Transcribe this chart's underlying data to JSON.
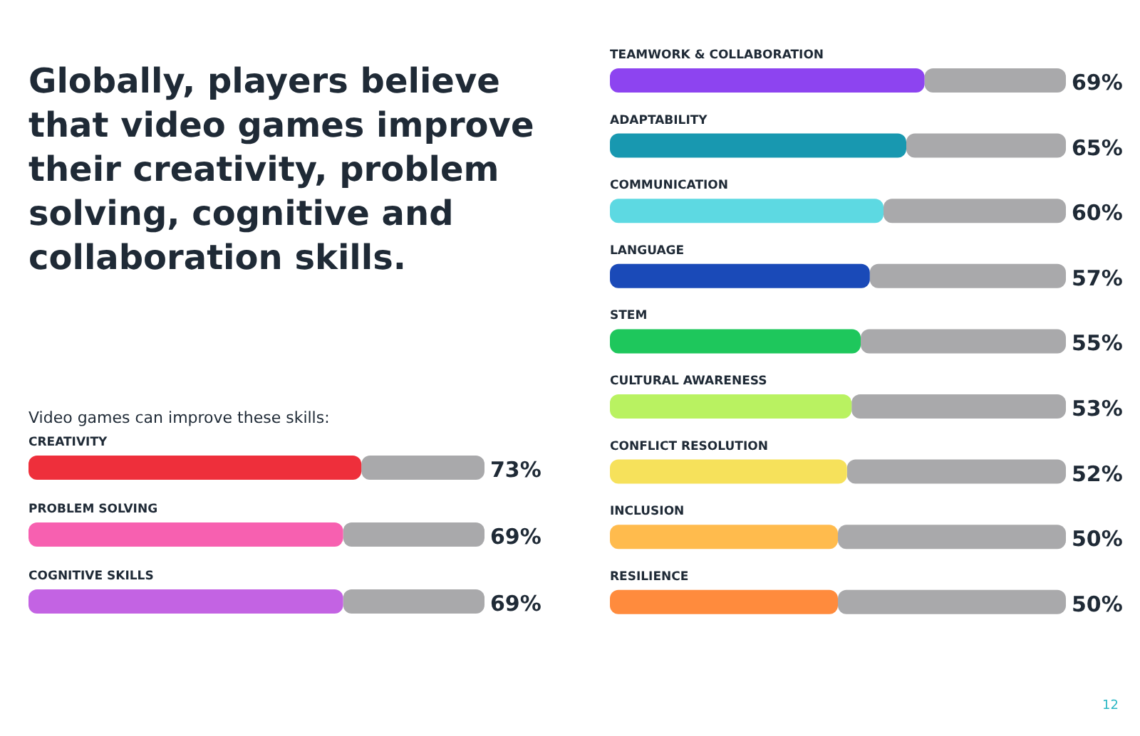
{
  "chart_data": [
    {
      "type": "bar",
      "orientation": "horizontal",
      "title": "Globally, players believe that video games improve their creativity, problem solving, cognitive and collaboration skills.",
      "subtitle": "Video games can improve these skills:",
      "categories": [
        "CREATIVITY",
        "PROBLEM SOLVING",
        "COGNITIVE SKILLS"
      ],
      "values": [
        73,
        69,
        69
      ],
      "colors": [
        "#ee2f3b",
        "#f760b0",
        "#c363e3"
      ],
      "value_labels": [
        "73%",
        "69%",
        "69%"
      ],
      "xlim": [
        0,
        100
      ]
    },
    {
      "type": "bar",
      "orientation": "horizontal",
      "categories": [
        "TEAMWORK & COLLABORATION",
        "ADAPTABILITY",
        "COMMUNICATION",
        "LANGUAGE",
        "STEM",
        "CULTURAL AWARENESS",
        "CONFLICT RESOLUTION",
        "INCLUSION",
        "RESILIENCE"
      ],
      "values": [
        69,
        65,
        60,
        57,
        55,
        53,
        52,
        50,
        50
      ],
      "colors": [
        "#8d44f0",
        "#1898b0",
        "#5dd9e2",
        "#1a4ab8",
        "#1ec75c",
        "#b9f261",
        "#f6e15b",
        "#ffbb4d",
        "#ff8b3d"
      ],
      "value_labels": [
        "69%",
        "65%",
        "60%",
        "57%",
        "55%",
        "53%",
        "52%",
        "50%",
        "50%"
      ],
      "xlim": [
        0,
        100
      ],
      "annotations": [
        "12"
      ]
    }
  ]
}
